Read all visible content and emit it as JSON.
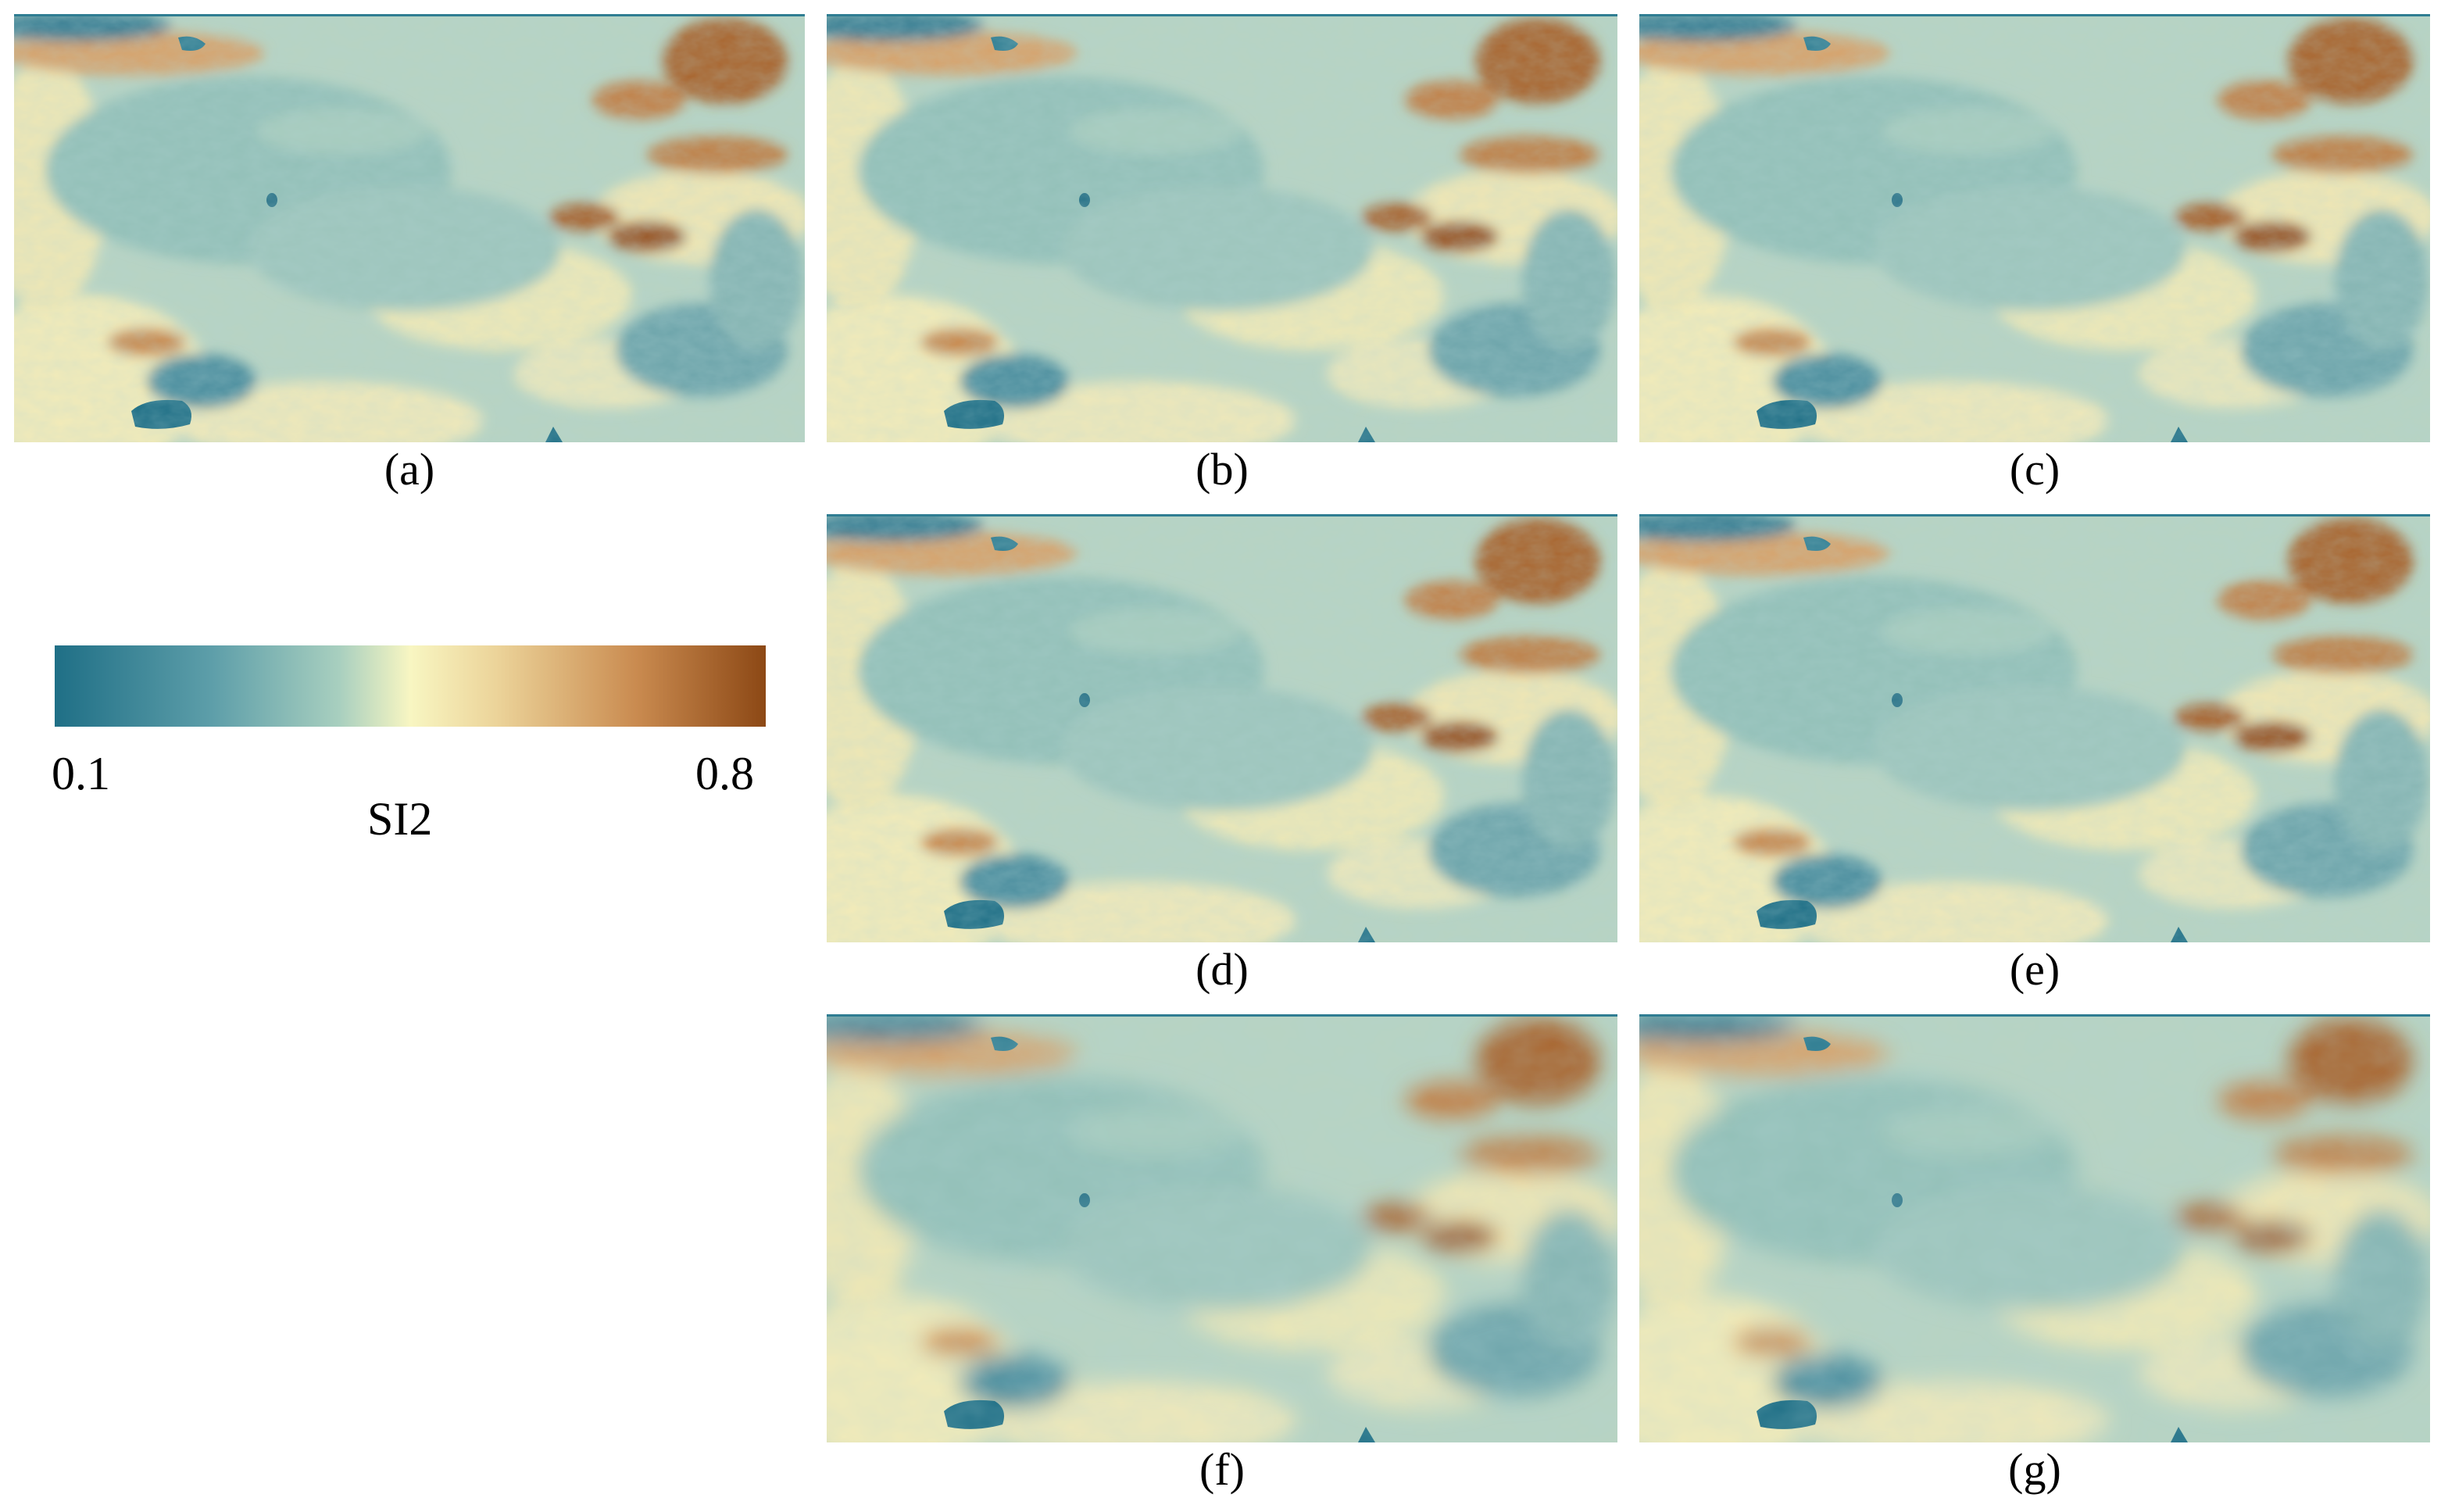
{
  "panels": [
    {
      "id": "a",
      "label": "(a)"
    },
    {
      "id": "b",
      "label": "(b)"
    },
    {
      "id": "c",
      "label": "(c)"
    },
    {
      "id": "d",
      "label": "(d)"
    },
    {
      "id": "e",
      "label": "(e)"
    },
    {
      "id": "f",
      "label": "(f)"
    },
    {
      "id": "g",
      "label": "(g)"
    }
  ],
  "colorbar": {
    "min_label": "0.1",
    "max_label": "0.8",
    "title": "SI2",
    "colors": [
      "#1f6f86",
      "#5d9ea9",
      "#a8cfbf",
      "#f8f6c2",
      "#ecd49a",
      "#c98a4f",
      "#8c4815"
    ]
  }
}
